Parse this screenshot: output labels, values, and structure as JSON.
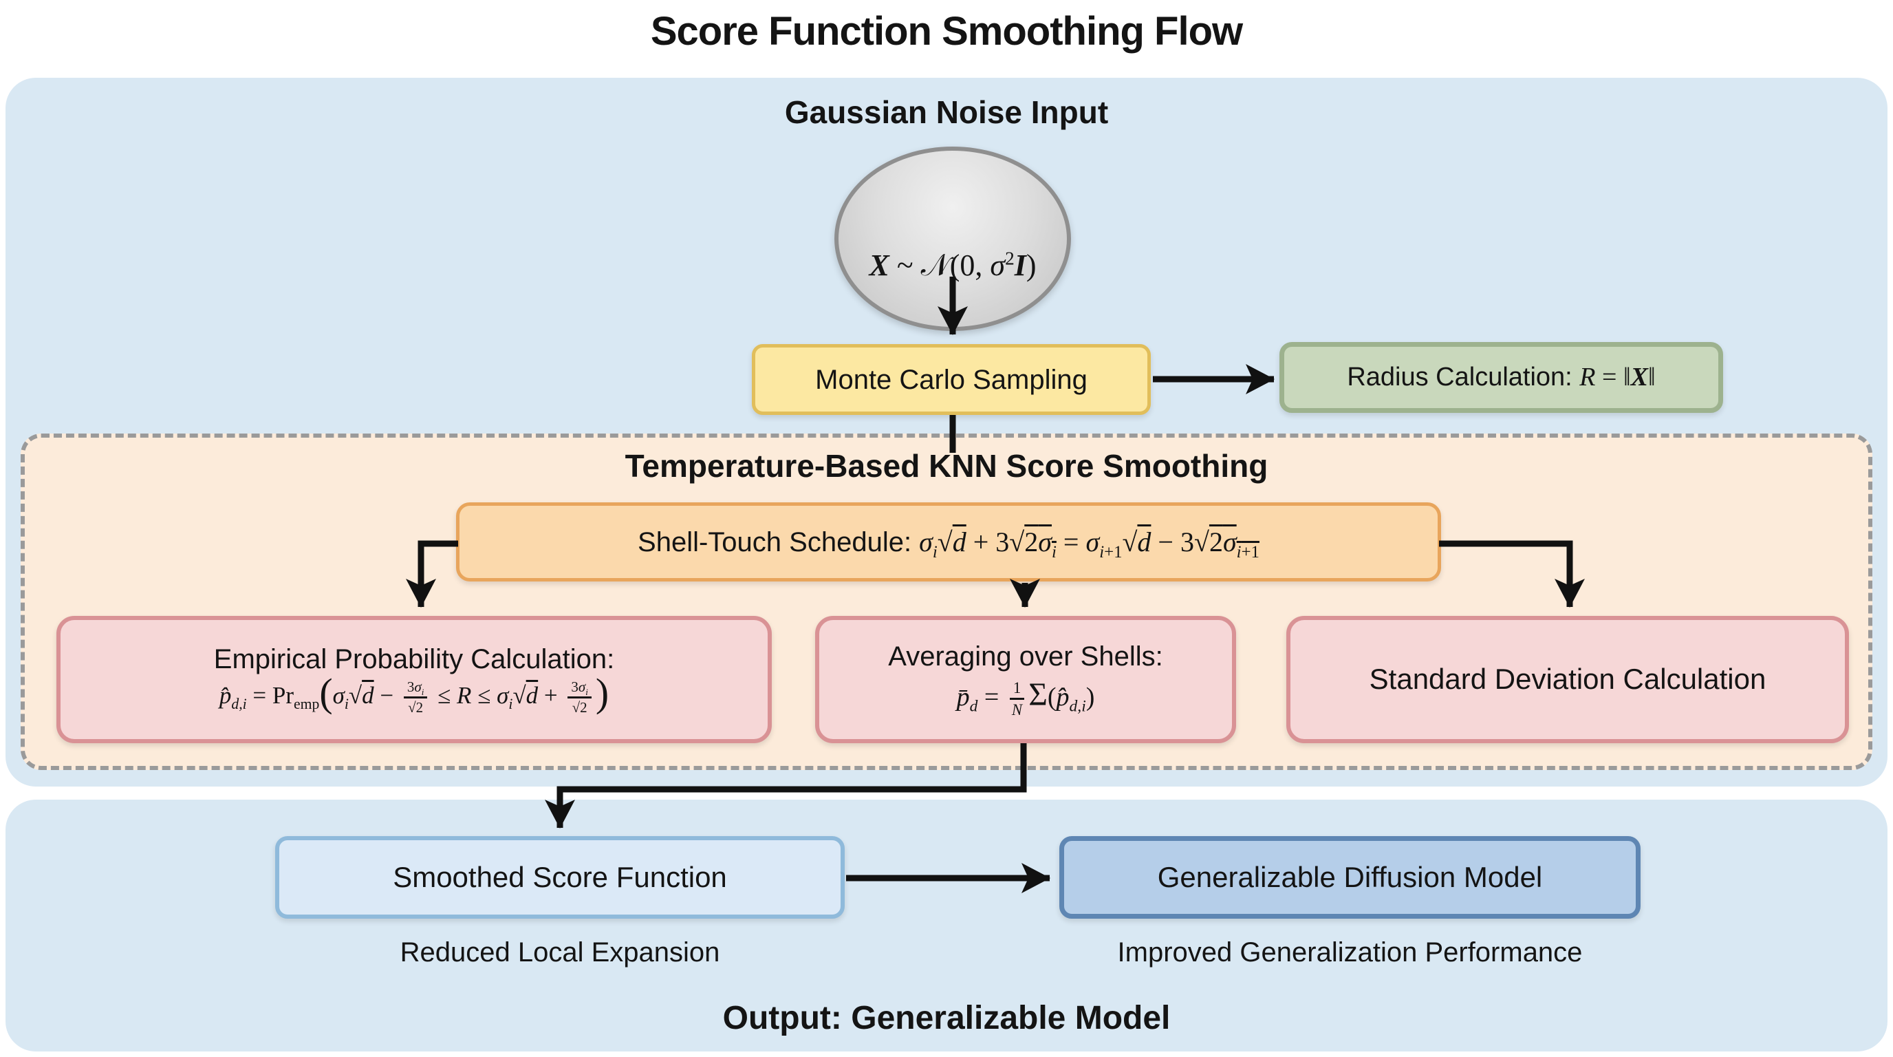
{
  "title": "Score Function Smoothing Flow",
  "colors": {
    "panel_blue": "#d9e8f3",
    "container_peach": "#fcebda",
    "container_border": "#9a9a9a",
    "yellow_fill": "#fce8a2",
    "yellow_border": "#e1be5b",
    "green_fill": "#c9d8bc",
    "green_border": "#9db28e",
    "orange_fill": "#fbd9ac",
    "orange_border": "#e8a55c",
    "pink_fill": "#f6d7d7",
    "pink_border": "#d99295",
    "lightblue_fill": "#dbe9f7",
    "lightblue_border": "#8fbadb",
    "blue_fill": "#b5cee9",
    "blue_border": "#5e86b3",
    "arrow": "#111111"
  },
  "input_section": {
    "heading": "Gaussian Noise Input",
    "gaussian_formula_html": "<i><b>X</b></i> ~ 𝒩(0, <i>σ</i><sup>2</sup><i><b>I</b></i>)",
    "monte_carlo_label": "Monte Carlo Sampling",
    "radius_label_html": "Radius Calculation: <span class='m'><i>R</i> = ‖<b><i>X</i></b>‖</span>"
  },
  "smoothing_section": {
    "heading": "Temperature-Based KNN Score Smoothing",
    "schedule_html": "Shell-Touch Schedule: <span class='m'><i>σ</i><sub><i>i</i></sub>√<span class='ol'><i>d</i></span> + 3√<span class='ol'>2<i>σ</i><sub><i>i</i></sub></span> = <i>σ</i><sub><i>i</i>+1</sub>√<span class='ol'><i>d</i></span> − 3√<span class='ol'>2<i>σ</i><sub><i>i</i>+1</sub></span></span>",
    "empirical_title": "Empirical Probability Calculation:",
    "empirical_formula_html": "<span class='m'><i>p̂</i><sub><i>d,i</i></sub> = Pr<sub>emp</sub><span class='bigp'>(</span><i>σ</i><sub><i>i</i></sub>√<span class='ol'><i>d</i></span> − <span class='frac'><span class='num'>3<i>σ</i><sub><i>i</i></sub></span><span class='den'>√2</span></span> ≤ <i>R</i> ≤ <i>σ</i><sub><i>i</i></sub>√<span class='ol'><i>d</i></span> + <span class='frac'><span class='num'>3<i>σ</i><sub><i>i</i></sub></span><span class='den'>√2</span></span><span class='bigp'>)</span></span>",
    "averaging_title": "Averaging over Shells:",
    "averaging_formula_html": "<span class='m'><i>p̄</i><sub><i>d</i></sub> = <span class='frac'><span class='num'>1</span><span class='den'><i>N</i></span></span><span class='sum'>Σ</span>(<i>p̂</i><sub><i>d,i</i></sub>)</span>",
    "stddev_label": "Standard Deviation Calculation"
  },
  "output_section": {
    "smoothed_label": "Smoothed Score Function",
    "smoothed_caption": "Reduced Local Expansion",
    "diffusion_label": "Generalizable Diffusion Model",
    "diffusion_caption": "Improved Generalization Performance",
    "footer": "Output: Generalizable Model"
  }
}
